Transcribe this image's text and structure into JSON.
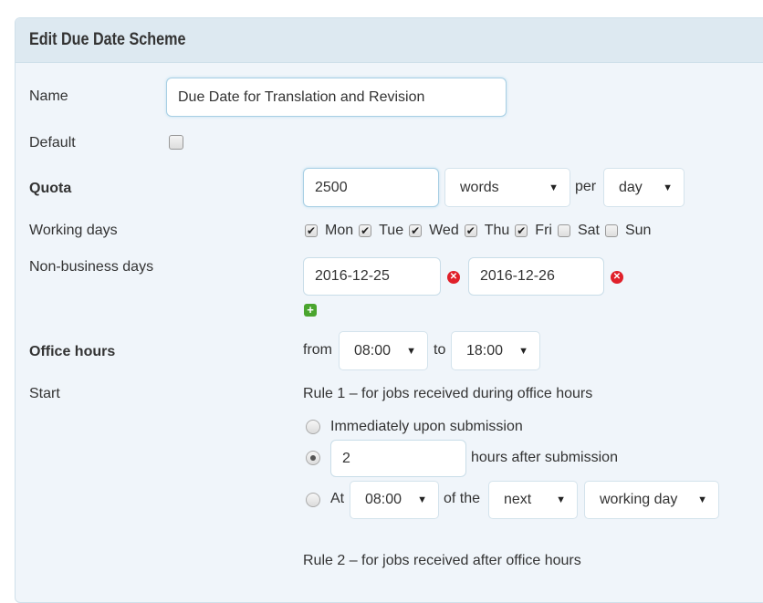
{
  "panel": {
    "title": "Edit Due Date Scheme"
  },
  "name": {
    "label": "Name",
    "value": "Due Date for Translation and Revision"
  },
  "default": {
    "label": "Default",
    "checked": false
  },
  "quota": {
    "label": "Quota",
    "value": "2500",
    "unit": "words",
    "per": "per",
    "period": "day"
  },
  "working_days": {
    "label": "Working days",
    "days": [
      {
        "label": "Mon",
        "checked": true
      },
      {
        "label": "Tue",
        "checked": true
      },
      {
        "label": "Wed",
        "checked": true
      },
      {
        "label": "Thu",
        "checked": true
      },
      {
        "label": "Fri",
        "checked": true
      },
      {
        "label": "Sat",
        "checked": false
      },
      {
        "label": "Sun",
        "checked": false
      }
    ]
  },
  "non_business": {
    "label": "Non-business days",
    "dates": [
      "2016-12-25",
      "2016-12-26"
    ]
  },
  "office_hours": {
    "label": "Office hours",
    "from_label": "from",
    "from": "08:00",
    "to_label": "to",
    "to": "18:00"
  },
  "start": {
    "label": "Start",
    "rule1": {
      "title": "Rule 1 – for jobs received during office hours",
      "opt_immediately": "Immediately upon submission",
      "hours_value": "2",
      "hours_suffix": "hours after submission",
      "at_label": "At",
      "at_time": "08:00",
      "of_the": "of the",
      "which": "next",
      "day_type": "working day",
      "selected": "hours"
    },
    "rule2": {
      "title": "Rule 2 – for jobs received after office hours"
    }
  }
}
